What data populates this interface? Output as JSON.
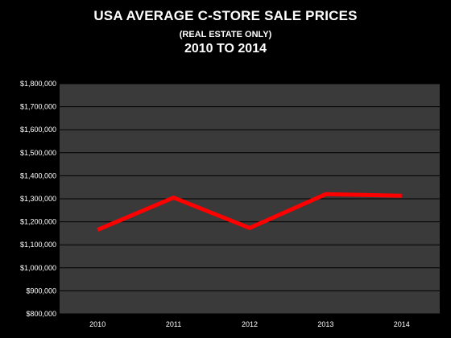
{
  "chart_data": {
    "type": "line",
    "title": "USA AVERAGE C-STORE SALE PRICES",
    "subtitle": "(REAL ESTATE ONLY)",
    "range_label": "2010 TO 2014",
    "categories": [
      "2010",
      "2011",
      "2012",
      "2013",
      "2014"
    ],
    "series": [
      {
        "values": [
          1165000,
          1305000,
          1173000,
          1320000,
          1313000
        ]
      }
    ],
    "ylim": [
      800000,
      1800000
    ],
    "yticks": [
      800000,
      900000,
      1000000,
      1100000,
      1200000,
      1300000,
      1400000,
      1500000,
      1600000,
      1700000,
      1800000
    ],
    "ytick_labels": [
      "$800,000",
      "$900,000",
      "$1,000,000",
      "$1,100,000",
      "$1,200,000",
      "$1,300,000",
      "$1,400,000",
      "$1,500,000",
      "$1,600,000",
      "$1,700,000",
      "$1,800,000"
    ],
    "grid": true,
    "colors": {
      "background": "#000000",
      "plot_area": "#3a3a3a",
      "gridline": "#000000",
      "line": "#ff0000",
      "text": "#ffffff"
    }
  }
}
